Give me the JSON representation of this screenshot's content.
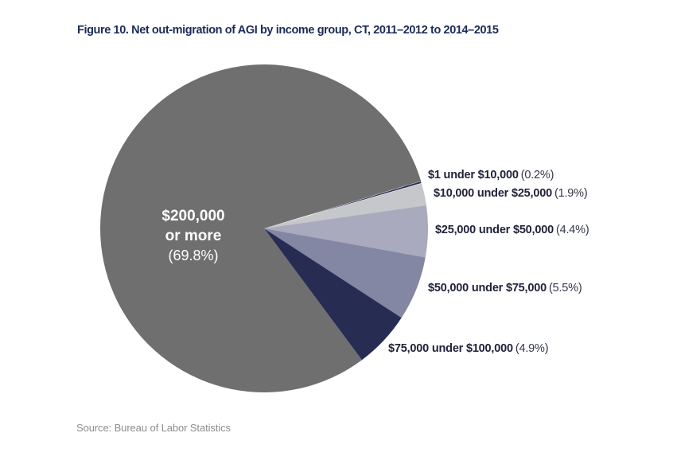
{
  "chart_data": {
    "type": "pie",
    "title": "Figure 10. Net out-migration of AGI by income group, CT, 2011–2012 to 2014–2015",
    "source": "Source: Bureau of Labor Statistics",
    "start_angle_deg": 73.2,
    "legend_position": "labels-right-and-inside",
    "slices": [
      {
        "label": "$1 under $10,000",
        "value_pct": 0.2,
        "pct_label": "(0.2%)",
        "color": "#272d52",
        "stroke": "#ffffff"
      },
      {
        "label": "$10,000 under $25,000",
        "value_pct": 1.9,
        "pct_label": "(1.9%)",
        "color": "#c6c7ca"
      },
      {
        "label": "$25,000 under $50,000",
        "value_pct": 4.4,
        "pct_label": "(4.4%)",
        "color": "#a9aabd"
      },
      {
        "label": "$50,000 under $75,000",
        "value_pct": 5.5,
        "pct_label": "(5.5%)",
        "color": "#8487a3"
      },
      {
        "label": "$75,000 under $100,000",
        "value_pct": 4.9,
        "pct_label": "(4.9%)",
        "color": "#272d52"
      },
      {
        "label": "$200,000 or more",
        "value_pct": 69.8,
        "pct_label": "(69.8%)",
        "color": "#6f6f6f"
      }
    ],
    "inside_label": {
      "line1": "$200,000",
      "line2": "or more",
      "line3": "(69.8%)"
    }
  }
}
